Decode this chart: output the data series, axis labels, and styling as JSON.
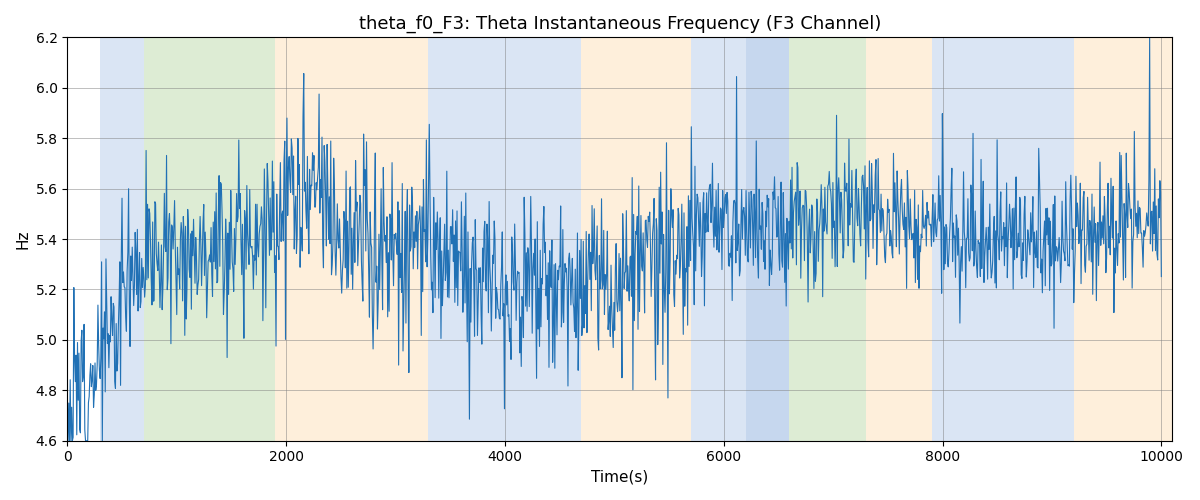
{
  "title": "theta_f0_F3: Theta Instantaneous Frequency (F3 Channel)",
  "xlabel": "Time(s)",
  "ylabel": "Hz",
  "ylim": [
    4.6,
    6.2
  ],
  "xlim": [
    0,
    10100
  ],
  "line_color": "#2171b5",
  "line_width": 0.8,
  "background_color": "#ffffff",
  "grid": true,
  "figsize": [
    12,
    5
  ],
  "dpi": 100,
  "bg_regions": [
    {
      "xmin": 300,
      "xmax": 700,
      "color": "#AEC6E8",
      "alpha": 0.45
    },
    {
      "xmin": 700,
      "xmax": 1900,
      "color": "#B5D5A0",
      "alpha": 0.45
    },
    {
      "xmin": 1900,
      "xmax": 3300,
      "color": "#FDDCB0",
      "alpha": 0.45
    },
    {
      "xmin": 3300,
      "xmax": 4700,
      "color": "#AEC6E8",
      "alpha": 0.45
    },
    {
      "xmin": 4700,
      "xmax": 5700,
      "color": "#FDDCB0",
      "alpha": 0.45
    },
    {
      "xmin": 5700,
      "xmax": 6200,
      "color": "#AEC6E8",
      "alpha": 0.45
    },
    {
      "xmin": 6200,
      "xmax": 6600,
      "color": "#AEC6E8",
      "alpha": 0.7
    },
    {
      "xmin": 6600,
      "xmax": 7300,
      "color": "#B5D5A0",
      "alpha": 0.45
    },
    {
      "xmin": 7300,
      "xmax": 7900,
      "color": "#FDDCB0",
      "alpha": 0.45
    },
    {
      "xmin": 7900,
      "xmax": 9200,
      "color": "#AEC6E8",
      "alpha": 0.45
    },
    {
      "xmin": 9200,
      "xmax": 10100,
      "color": "#FDDCB0",
      "alpha": 0.45
    }
  ],
  "seed": 12,
  "n_points": 1500,
  "xstart": 0,
  "xend": 10000
}
